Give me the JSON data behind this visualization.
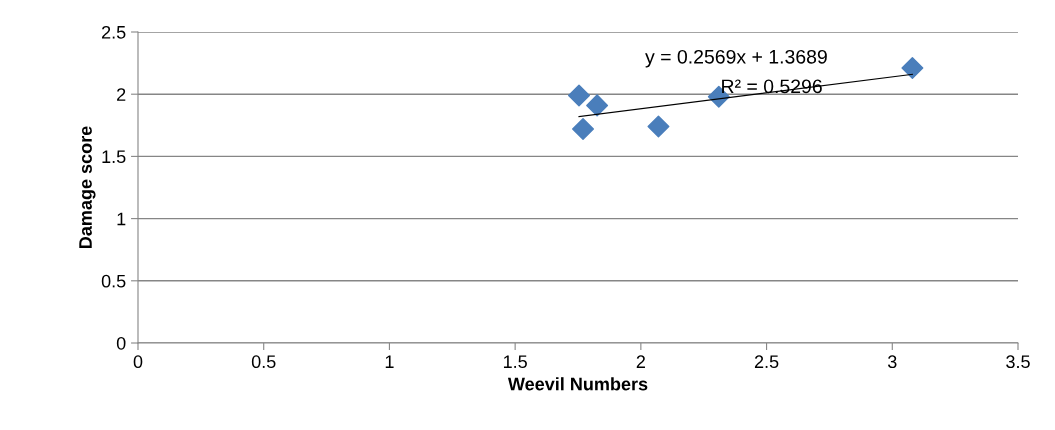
{
  "chart_data": {
    "type": "scatter",
    "xlabel": "Weevil Numbers",
    "ylabel": "Damage score",
    "xlim": [
      0,
      3.5
    ],
    "xticks": [
      0,
      0.5,
      1,
      1.5,
      2,
      2.5,
      3,
      3.5
    ],
    "ylim": [
      0,
      2.5
    ],
    "yticks": [
      0,
      0.5,
      1,
      1.5,
      2,
      2.5
    ],
    "grid": "y",
    "marker": "diamond",
    "series": [
      {
        "color": "#4a7ebb",
        "x": [
          1.754,
          1.77,
          1.826,
          2.07,
          2.31,
          3.08
        ],
        "values": [
          1.99,
          1.72,
          1.91,
          1.74,
          1.98,
          2.21
        ]
      },
      {
        "type": "line",
        "marker": "none",
        "color": "#000000",
        "x": [
          1.754,
          3.08
        ],
        "values": [
          1.82,
          2.16
        ]
      }
    ],
    "annotations": [
      "y = 0.2569x + 1.3689",
      "R² = 0.5296"
    ]
  }
}
